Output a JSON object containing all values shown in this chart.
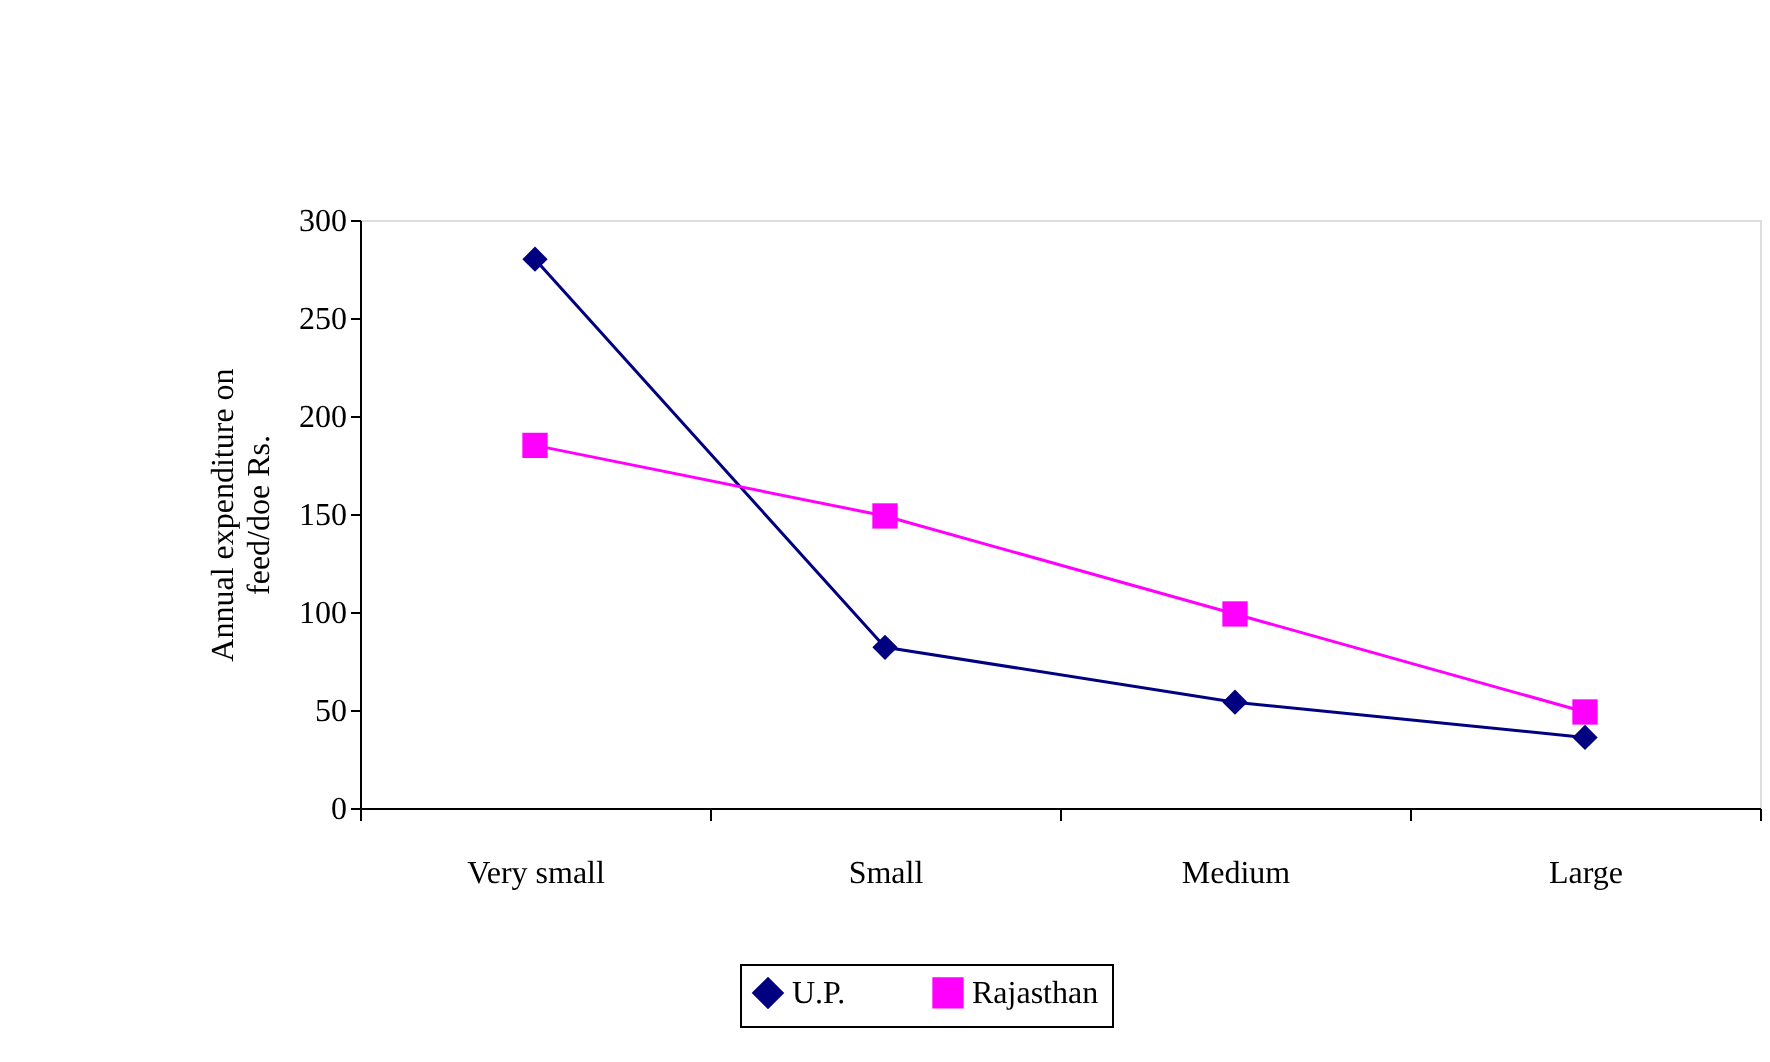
{
  "chart_data": {
    "type": "line",
    "ylabel": "Annual expenditure on feed/doe Rs.",
    "categories": [
      "Very small",
      "Small",
      "Medium",
      "Large"
    ],
    "series": [
      {
        "name": "U.P.",
        "color": "#000080",
        "marker": "diamond",
        "values": [
          280,
          82,
          54,
          36
        ]
      },
      {
        "name": "Rajasthan",
        "color": "#ff00ff",
        "marker": "square",
        "values": [
          185,
          149,
          99,
          49
        ]
      }
    ],
    "ylim": [
      0,
      300
    ],
    "yticks": [
      0,
      50,
      100,
      150,
      200,
      250,
      300
    ],
    "grid": false,
    "legend": "bottom",
    "line_style": "solid"
  }
}
